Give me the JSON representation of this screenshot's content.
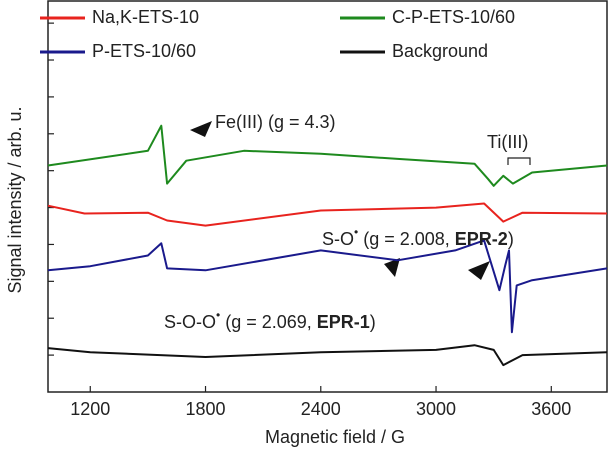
{
  "chart_data": {
    "type": "line",
    "xlabel": "Magnetic field / G",
    "ylabel": "Signal intensity / arb. u.",
    "xlim": [
      980,
      3890
    ],
    "xticks": [
      1200,
      1800,
      2400,
      3000,
      3600
    ],
    "ylim": [
      0,
      10.6
    ],
    "yticks": [
      1,
      2,
      3,
      4,
      5,
      6,
      7,
      8,
      9,
      10
    ],
    "show_ytick_labels": false,
    "legend": "top",
    "series": [
      {
        "name": "Na,K-ETS-10",
        "color": "#e8231e",
        "x": [
          980,
          1170,
          1500,
          1600,
          1800,
          2400,
          3000,
          3250,
          3350,
          3450,
          3890
        ],
        "values": [
          5.05,
          4.84,
          4.86,
          4.65,
          4.51,
          4.92,
          5.0,
          5.11,
          4.62,
          4.86,
          4.84
        ]
      },
      {
        "name": "C-P-ETS-10/60",
        "color": "#1e8a1e",
        "x": [
          980,
          1500,
          1570,
          1600,
          1700,
          2000,
          2400,
          2800,
          3200,
          3270,
          3300,
          3350,
          3400,
          3500,
          3890
        ],
        "values": [
          6.14,
          6.54,
          7.22,
          5.65,
          6.27,
          6.54,
          6.46,
          6.32,
          6.19,
          5.78,
          5.59,
          5.86,
          5.65,
          5.95,
          6.14
        ]
      },
      {
        "name": "P-ETS-10/60",
        "color": "#1a1a8c",
        "x": [
          980,
          1200,
          1500,
          1570,
          1600,
          1800,
          2400,
          2800,
          3100,
          3250,
          3330,
          3360,
          3380,
          3395,
          3420,
          3500,
          3890
        ],
        "values": [
          3.3,
          3.41,
          3.7,
          4.03,
          3.35,
          3.3,
          3.84,
          3.57,
          3.84,
          4.11,
          2.76,
          3.43,
          3.84,
          1.62,
          2.89,
          3.03,
          3.35
        ]
      },
      {
        "name": "Background",
        "color": "#111111",
        "x": [
          980,
          1200,
          1800,
          2400,
          3000,
          3200,
          3300,
          3350,
          3450,
          3890
        ],
        "values": [
          1.19,
          1.08,
          0.95,
          1.08,
          1.14,
          1.27,
          1.14,
          0.73,
          1.0,
          1.08
        ]
      }
    ],
    "annotations": [
      {
        "parts": [
          {
            "text": "Fe(III) (g = 4.3)"
          }
        ]
      },
      {
        "parts": [
          {
            "text": "Ti(III)"
          }
        ]
      },
      {
        "parts": [
          {
            "text": "S-O"
          },
          {
            "text": "•",
            "sup": true
          },
          {
            "text": " (g = 2.008, "
          },
          {
            "text": "EPR-2",
            "bold": true
          },
          {
            "text": ")"
          }
        ]
      },
      {
        "parts": [
          {
            "text": "S-O-O"
          },
          {
            "text": "•",
            "sup": true
          },
          {
            "text": " (g = 2.069, "
          },
          {
            "text": "EPR-1",
            "bold": true
          },
          {
            "text": ")"
          }
        ]
      }
    ]
  }
}
